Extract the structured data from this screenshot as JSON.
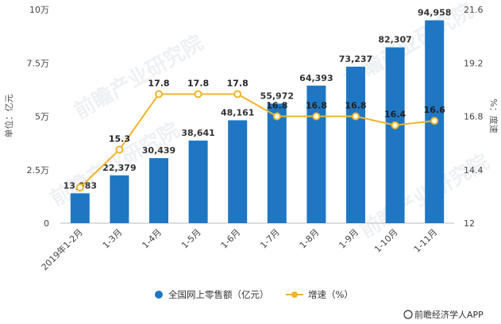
{
  "chart_data": {
    "type": "bar",
    "title": "",
    "categories": [
      "2019年1-2月",
      "1-3月",
      "1-4月",
      "1-5月",
      "1-6月",
      "1-7月",
      "1-8月",
      "1-9月",
      "1-10月",
      "1-11月"
    ],
    "series": [
      {
        "name": "全国网上零售额（亿元）",
        "type": "bar",
        "axis": "left",
        "values": [
          13983,
          22379,
          30439,
          38641,
          48161,
          55972,
          64393,
          73237,
          82307,
          94958
        ],
        "labels": [
          "13,983",
          "22,379",
          "30,439",
          "38,641",
          "48,161",
          "55,972",
          "64,393",
          "73,237",
          "82,307",
          "94,958"
        ]
      },
      {
        "name": "增速（%）",
        "type": "line",
        "axis": "right",
        "values": [
          13.6,
          15.3,
          17.8,
          17.8,
          17.8,
          16.8,
          16.8,
          16.8,
          16.4,
          16.6
        ],
        "labels": [
          "",
          "15.3",
          "17.8",
          "17.8",
          "17.8",
          "16.8",
          "16.8",
          "16.8",
          "16.4",
          "16.6"
        ]
      }
    ],
    "y_left": {
      "label": "单位：亿元",
      "ticks": [
        "0",
        "2.5万",
        "5万",
        "7.5万",
        "10万"
      ],
      "tick_values": [
        0,
        25000,
        50000,
        75000,
        100000
      ],
      "ylim": [
        0,
        100000
      ]
    },
    "y_right": {
      "label": "%：度速",
      "ticks": [
        "12",
        "14.4",
        "16.8",
        "19.2",
        "21.6"
      ],
      "tick_values": [
        12,
        14.4,
        16.8,
        19.2,
        21.6
      ],
      "ylim": [
        12,
        21.6
      ]
    },
    "grid": false,
    "legend_position": "bottom",
    "colors": {
      "bar": "#1f77c4",
      "line": "#f0b429",
      "marker_fill": "#ffffff"
    }
  },
  "source": "前瞻经济学人APP",
  "watermark": "前瞻产业研究院"
}
